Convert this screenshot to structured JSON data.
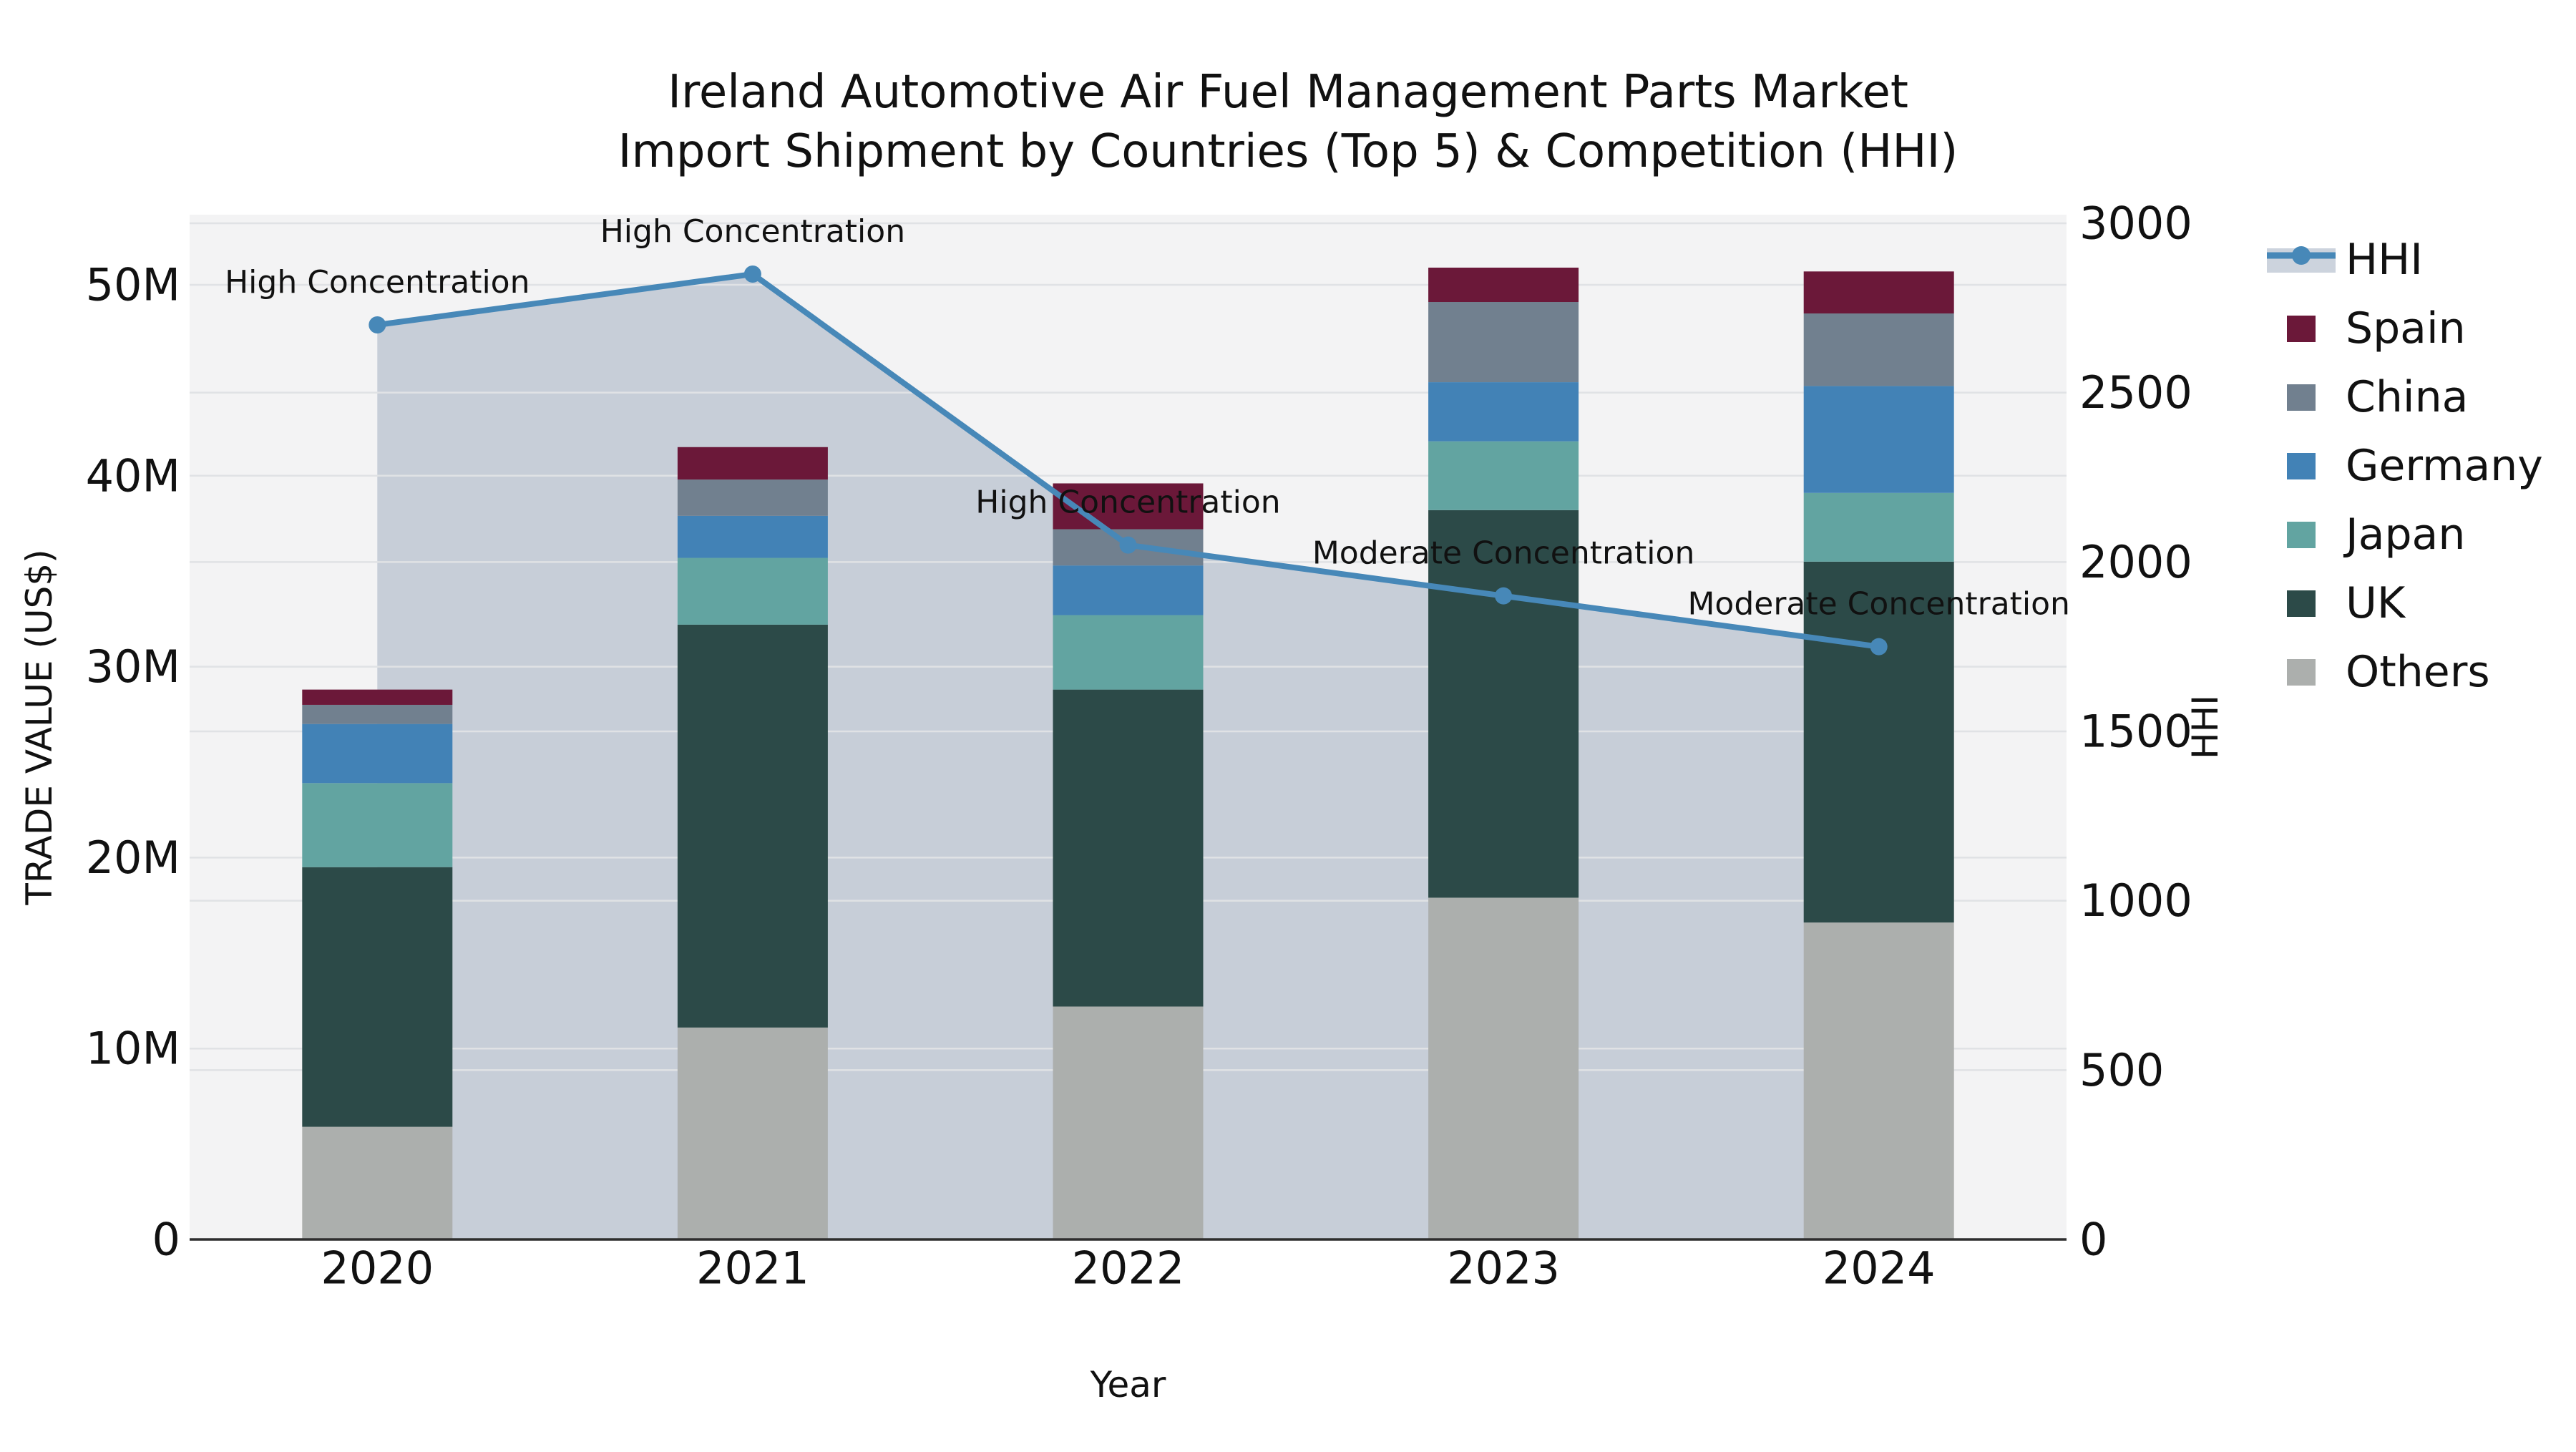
{
  "title": {
    "line1": "Ireland Automotive Air Fuel Management Parts Market",
    "line2": "Import Shipment by Countries (Top 5) & Competition (HHI)"
  },
  "axes": {
    "left": {
      "title": "TRADE VALUE (US$)",
      "tick_labels": [
        "0",
        "10M",
        "20M",
        "30M",
        "40M",
        "50M"
      ],
      "tick_values": [
        0,
        10,
        20,
        30,
        40,
        50
      ]
    },
    "right": {
      "title": "HHI",
      "tick_labels": [
        "0",
        "500",
        "1000",
        "1500",
        "2000",
        "2500",
        "3000"
      ],
      "tick_values": [
        0,
        500,
        1000,
        1500,
        2000,
        2500,
        3000
      ]
    },
    "bottom": {
      "title": "Year"
    }
  },
  "chart_data": {
    "type": "bar",
    "subtype": "stacked-bars-with-line",
    "categories": [
      "2020",
      "2021",
      "2022",
      "2023",
      "2024"
    ],
    "value_unit": "million US$",
    "series": [
      {
        "name": "Others",
        "color": "#ACAFAD",
        "values": [
          5.9,
          11.1,
          12.2,
          17.9,
          16.6
        ]
      },
      {
        "name": "UK",
        "color": "#2C4A48",
        "values": [
          13.6,
          21.1,
          16.6,
          20.3,
          18.9
        ]
      },
      {
        "name": "Japan",
        "color": "#62A4A1",
        "values": [
          4.4,
          3.5,
          3.9,
          3.6,
          3.6
        ]
      },
      {
        "name": "Germany",
        "color": "#4282B6",
        "values": [
          3.1,
          2.2,
          2.6,
          3.1,
          5.6
        ]
      },
      {
        "name": "China",
        "color": "#71808F",
        "values": [
          1.0,
          1.9,
          1.9,
          4.2,
          3.8
        ]
      },
      {
        "name": "Spain",
        "color": "#6B1839",
        "values": [
          0.8,
          1.7,
          2.4,
          1.8,
          2.2
        ]
      }
    ],
    "stack_totals": [
      28.8,
      41.5,
      39.6,
      50.9,
      50.7
    ],
    "line_series": {
      "name": "HHI",
      "color": "#4788B8",
      "fill_color": "#A7B4C4",
      "fill_opacity": 0.58,
      "values": [
        2700,
        2850,
        2050,
        1900,
        1750
      ]
    },
    "annotations": [
      {
        "category": "2020",
        "text": "High Concentration"
      },
      {
        "category": "2021",
        "text": "High Concentration"
      },
      {
        "category": "2022",
        "text": "High Concentration"
      },
      {
        "category": "2023",
        "text": "Moderate Concentration"
      },
      {
        "category": "2024",
        "text": "Moderate Concentration"
      }
    ],
    "title": "Ireland Automotive Air Fuel Management Parts Market Import Shipment by Countries (Top 5) & Competition (HHI)",
    "xlabel": "Year",
    "ylabel_left": "TRADE VALUE (US$)",
    "ylabel_right": "HHI",
    "ylim_left": [
      0,
      53.7
    ],
    "ylim_right": [
      0,
      3000
    ],
    "grid": true,
    "legend_position": "right"
  },
  "legend": {
    "items": [
      {
        "label": "HHI",
        "type": "line",
        "color": "#4788B8"
      },
      {
        "label": "Spain",
        "type": "swatch",
        "color": "#6B1839"
      },
      {
        "label": "China",
        "type": "swatch",
        "color": "#71808F"
      },
      {
        "label": "Germany",
        "type": "swatch",
        "color": "#4282B6"
      },
      {
        "label": "Japan",
        "type": "swatch",
        "color": "#62A4A1"
      },
      {
        "label": "UK",
        "type": "swatch",
        "color": "#2C4A48"
      },
      {
        "label": "Others",
        "type": "swatch",
        "color": "#ACAFAD"
      }
    ]
  },
  "style": {
    "plot_bg": "#F3F3F4",
    "grid_color": "#E0E2E5",
    "axis_line_color": "#2E2E2E",
    "text_color": "#111111"
  }
}
